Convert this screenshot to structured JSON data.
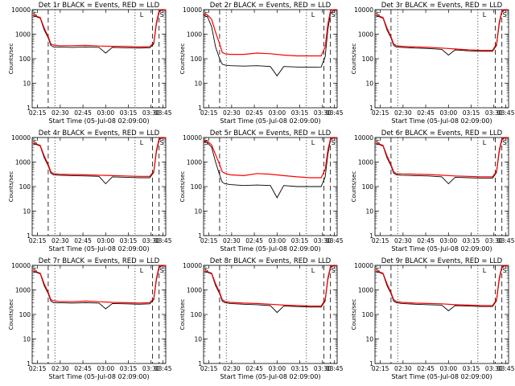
{
  "figure": {
    "xlabel": "Start Time (05-Jul-08 02:09:00)",
    "ylabel": "Counts/sec",
    "x_ticks": [
      "02:15",
      "02:30",
      "02:45",
      "03:00",
      "03:15",
      "03:30",
      "03:45"
    ],
    "y_ticks": [
      "1",
      "10",
      "100",
      "1000",
      "10000"
    ]
  },
  "colors": {
    "events": "#000000",
    "lld": "#ff0000"
  },
  "chart_data": [
    {
      "type": "line",
      "title": "Det 1r BLACK = Events, RED = LLD",
      "xlabel": "Start Time (05-Jul-08 02:09:00)",
      "ylabel": "Counts/sec",
      "y_scale": "log",
      "ylim": [
        1,
        10000
      ],
      "x_range_minutes_after_start": [
        0,
        100
      ],
      "x_ticks": [
        "02:15",
        "02:30",
        "02:45",
        "03:00",
        "03:15",
        "03:30",
        "03:45"
      ],
      "markers": [
        "S",
        "L",
        "S"
      ],
      "series": [
        {
          "name": "Events",
          "x": [
            0,
            3,
            6,
            9,
            12,
            14,
            16,
            20,
            30,
            40,
            50,
            55,
            60,
            70,
            80,
            88,
            91,
            93,
            95,
            97,
            100
          ],
          "y": [
            6000,
            5200,
            4500,
            1500,
            700,
            350,
            300,
            300,
            290,
            300,
            290,
            170,
            290,
            280,
            270,
            280,
            400,
            2500,
            8000,
            9500,
            10000
          ]
        },
        {
          "name": "LLD",
          "x": [
            0,
            3,
            6,
            9,
            12,
            14,
            16,
            20,
            30,
            40,
            50,
            60,
            70,
            80,
            88,
            91,
            93,
            95,
            97,
            100
          ],
          "y": [
            6000,
            5500,
            4800,
            1800,
            800,
            400,
            360,
            340,
            340,
            350,
            330,
            320,
            320,
            300,
            310,
            450,
            3000,
            9000,
            10000,
            10000
          ]
        }
      ]
    },
    {
      "type": "line",
      "title": "Det 2r BLACK = Events, RED = LLD",
      "xlabel": "Start Time (05-Jul-08 02:09:00)",
      "ylabel": "Counts/sec",
      "y_scale": "log",
      "ylim": [
        1,
        10000
      ],
      "x_range_minutes_after_start": [
        0,
        100
      ],
      "x_ticks": [
        "02:15",
        "02:30",
        "02:45",
        "03:00",
        "03:15",
        "03:30",
        "03:45"
      ],
      "markers": [
        "S",
        "L",
        "S"
      ],
      "series": [
        {
          "name": "Events",
          "x": [
            0,
            3,
            6,
            9,
            12,
            14,
            16,
            20,
            30,
            40,
            50,
            55,
            60,
            70,
            80,
            88,
            91,
            93,
            95,
            97,
            100
          ],
          "y": [
            6000,
            5000,
            2000,
            300,
            100,
            60,
            55,
            52,
            50,
            52,
            48,
            20,
            48,
            46,
            45,
            46,
            120,
            1500,
            7000,
            9000,
            10000
          ]
        },
        {
          "name": "LLD",
          "x": [
            0,
            3,
            6,
            9,
            12,
            14,
            16,
            20,
            30,
            40,
            50,
            60,
            70,
            80,
            88,
            91,
            93,
            95,
            97,
            100
          ],
          "y": [
            7000,
            6000,
            4000,
            1200,
            400,
            180,
            160,
            150,
            150,
            170,
            160,
            140,
            130,
            130,
            130,
            300,
            2500,
            9000,
            10000,
            10000
          ]
        }
      ]
    },
    {
      "type": "line",
      "title": "Det 3r BLACK = Events, RED = LLD",
      "xlabel": "Start Time (05-Jul-08 02:09:00)",
      "ylabel": "Counts/sec",
      "y_scale": "log",
      "ylim": [
        1,
        10000
      ],
      "x_range_minutes_after_start": [
        0,
        100
      ],
      "x_ticks": [
        "02:15",
        "02:30",
        "02:45",
        "03:00",
        "03:15",
        "03:30",
        "03:45"
      ],
      "markers": [
        "S",
        "L",
        "S"
      ],
      "series": [
        {
          "name": "Events",
          "x": [
            0,
            3,
            6,
            9,
            12,
            14,
            16,
            20,
            30,
            40,
            50,
            55,
            60,
            70,
            80,
            88,
            91,
            93,
            95,
            97,
            100
          ],
          "y": [
            6000,
            5200,
            4500,
            1500,
            700,
            350,
            300,
            290,
            270,
            260,
            240,
            140,
            230,
            210,
            200,
            200,
            350,
            2500,
            8000,
            9500,
            10000
          ]
        },
        {
          "name": "LLD",
          "x": [
            0,
            3,
            6,
            9,
            12,
            14,
            16,
            20,
            30,
            40,
            50,
            60,
            70,
            80,
            88,
            91,
            93,
            95,
            97,
            100
          ],
          "y": [
            6000,
            5500,
            4800,
            1800,
            800,
            400,
            340,
            320,
            300,
            290,
            270,
            250,
            230,
            220,
            220,
            400,
            3000,
            9000,
            10000,
            10000
          ]
        }
      ]
    },
    {
      "type": "line",
      "title": "Det 4r BLACK = Events, RED = LLD",
      "xlabel": "Start Time (05-Jul-08 02:09:00)",
      "ylabel": "Counts/sec",
      "y_scale": "log",
      "ylim": [
        1,
        10000
      ],
      "x_range_minutes_after_start": [
        0,
        100
      ],
      "x_ticks": [
        "02:15",
        "02:30",
        "02:45",
        "03:00",
        "03:15",
        "03:30",
        "03:45"
      ],
      "markers": [
        "S",
        "L",
        "S"
      ],
      "series": [
        {
          "name": "Events",
          "x": [
            0,
            3,
            6,
            9,
            12,
            14,
            16,
            20,
            30,
            40,
            50,
            55,
            60,
            70,
            80,
            88,
            91,
            93,
            95,
            97,
            100
          ],
          "y": [
            6000,
            5200,
            4500,
            1500,
            700,
            350,
            300,
            290,
            280,
            270,
            260,
            130,
            250,
            240,
            230,
            230,
            380,
            2500,
            8000,
            9500,
            10000
          ]
        },
        {
          "name": "LLD",
          "x": [
            0,
            3,
            6,
            9,
            12,
            14,
            16,
            20,
            30,
            40,
            50,
            60,
            70,
            80,
            88,
            91,
            93,
            95,
            97,
            100
          ],
          "y": [
            6000,
            5500,
            4800,
            1800,
            800,
            400,
            340,
            320,
            310,
            300,
            290,
            280,
            270,
            260,
            260,
            420,
            3000,
            9000,
            10000,
            10000
          ]
        }
      ]
    },
    {
      "type": "line",
      "title": "Det 5r BLACK = Events, RED = LLD",
      "xlabel": "Start Time (05-Jul-08 02:09:00)",
      "ylabel": "Counts/sec",
      "y_scale": "log",
      "ylim": [
        1,
        10000
      ],
      "x_range_minutes_after_start": [
        0,
        100
      ],
      "x_ticks": [
        "02:15",
        "02:30",
        "02:45",
        "03:00",
        "03:15",
        "03:30",
        "03:45"
      ],
      "markers": [
        "S",
        "L",
        "S"
      ],
      "series": [
        {
          "name": "Events",
          "x": [
            0,
            3,
            6,
            9,
            12,
            14,
            16,
            20,
            30,
            40,
            50,
            55,
            60,
            70,
            80,
            88,
            91,
            93,
            95,
            97,
            100
          ],
          "y": [
            7000,
            6000,
            4000,
            1000,
            300,
            150,
            130,
            120,
            110,
            115,
            110,
            35,
            110,
            100,
            100,
            100,
            250,
            2000,
            8000,
            9500,
            10000
          ]
        },
        {
          "name": "LLD",
          "x": [
            0,
            3,
            6,
            9,
            12,
            14,
            16,
            20,
            30,
            40,
            50,
            60,
            70,
            80,
            88,
            91,
            93,
            95,
            97,
            100
          ],
          "y": [
            8000,
            7000,
            5000,
            2000,
            800,
            400,
            350,
            300,
            280,
            340,
            320,
            280,
            250,
            230,
            230,
            500,
            3000,
            9000,
            10000,
            10000
          ]
        }
      ]
    },
    {
      "type": "line",
      "title": "Det 6r BLACK = Events, RED = LLD",
      "xlabel": "Start Time (05-Jul-08 02:09:00)",
      "ylabel": "Counts/sec",
      "y_scale": "log",
      "ylim": [
        1,
        10000
      ],
      "x_range_minutes_after_start": [
        0,
        100
      ],
      "x_ticks": [
        "02:15",
        "02:30",
        "02:45",
        "03:00",
        "03:15",
        "03:30",
        "03:45"
      ],
      "markers": [
        "S",
        "L",
        "S"
      ],
      "series": [
        {
          "name": "Events",
          "x": [
            0,
            3,
            6,
            9,
            12,
            14,
            16,
            20,
            30,
            40,
            50,
            55,
            60,
            70,
            80,
            88,
            91,
            93,
            95,
            97,
            100
          ],
          "y": [
            6000,
            5200,
            4500,
            1500,
            700,
            350,
            300,
            290,
            280,
            270,
            250,
            130,
            240,
            230,
            220,
            220,
            380,
            2500,
            8000,
            9500,
            10000
          ]
        },
        {
          "name": "LLD",
          "x": [
            0,
            3,
            6,
            9,
            12,
            14,
            16,
            20,
            30,
            40,
            50,
            60,
            70,
            80,
            88,
            91,
            93,
            95,
            97,
            100
          ],
          "y": [
            6000,
            5500,
            4800,
            1800,
            800,
            400,
            340,
            330,
            320,
            310,
            290,
            270,
            260,
            250,
            250,
            420,
            3000,
            9000,
            10000,
            10000
          ]
        }
      ]
    },
    {
      "type": "line",
      "title": "Det 7r BLACK = Events, RED = LLD",
      "xlabel": "Start Time (05-Jul-08 02:09:00)",
      "ylabel": "Counts/sec",
      "y_scale": "log",
      "ylim": [
        1,
        10000
      ],
      "x_range_minutes_after_start": [
        0,
        100
      ],
      "x_ticks": [
        "02:15",
        "02:30",
        "02:45",
        "03:00",
        "03:15",
        "03:30",
        "03:45"
      ],
      "markers": [
        "S",
        "L",
        "S"
      ],
      "series": [
        {
          "name": "Events",
          "x": [
            0,
            3,
            6,
            9,
            12,
            14,
            16,
            20,
            30,
            40,
            50,
            55,
            60,
            70,
            80,
            88,
            91,
            93,
            95,
            97,
            100
          ],
          "y": [
            6000,
            5200,
            4500,
            1500,
            700,
            350,
            300,
            300,
            290,
            300,
            290,
            170,
            280,
            270,
            260,
            270,
            400,
            2500,
            8000,
            9500,
            10000
          ]
        },
        {
          "name": "LLD",
          "x": [
            0,
            3,
            6,
            9,
            12,
            14,
            16,
            20,
            30,
            40,
            50,
            60,
            70,
            80,
            88,
            91,
            93,
            95,
            97,
            100
          ],
          "y": [
            6000,
            5500,
            4800,
            1800,
            800,
            400,
            360,
            340,
            330,
            350,
            330,
            310,
            300,
            290,
            300,
            450,
            3000,
            9000,
            10000,
            10000
          ]
        }
      ]
    },
    {
      "type": "line",
      "title": "Det 8r BLACK = Events, RED = LLD",
      "xlabel": "Start Time (05-Jul-08 02:09:00)",
      "ylabel": "Counts/sec",
      "y_scale": "log",
      "ylim": [
        1,
        10000
      ],
      "x_range_minutes_after_start": [
        0,
        100
      ],
      "x_ticks": [
        "02:15",
        "02:30",
        "02:45",
        "03:00",
        "03:15",
        "03:30",
        "03:45"
      ],
      "markers": [
        "S",
        "L",
        "S"
      ],
      "series": [
        {
          "name": "Events",
          "x": [
            0,
            3,
            6,
            9,
            12,
            14,
            16,
            20,
            30,
            40,
            50,
            55,
            60,
            70,
            80,
            88,
            91,
            93,
            95,
            97,
            100
          ],
          "y": [
            6000,
            5200,
            4500,
            1500,
            700,
            350,
            300,
            280,
            260,
            250,
            230,
            120,
            220,
            210,
            200,
            200,
            350,
            2500,
            8000,
            9500,
            10000
          ]
        },
        {
          "name": "LLD",
          "x": [
            0,
            3,
            6,
            9,
            12,
            14,
            16,
            20,
            30,
            40,
            50,
            60,
            70,
            80,
            88,
            91,
            93,
            95,
            97,
            100
          ],
          "y": [
            6000,
            5500,
            4800,
            1800,
            800,
            400,
            340,
            310,
            290,
            280,
            260,
            240,
            230,
            220,
            220,
            400,
            3000,
            9000,
            10000,
            10000
          ]
        }
      ]
    },
    {
      "type": "line",
      "title": "Det 9r BLACK = Events, RED = LLD",
      "xlabel": "Start Time (05-Jul-08 02:09:00)",
      "ylabel": "Counts/sec",
      "y_scale": "log",
      "ylim": [
        1,
        10000
      ],
      "x_range_minutes_after_start": [
        0,
        100
      ],
      "x_ticks": [
        "02:15",
        "02:30",
        "02:45",
        "03:00",
        "03:15",
        "03:30",
        "03:45"
      ],
      "markers": [
        "S",
        "L",
        "S"
      ],
      "series": [
        {
          "name": "Events",
          "x": [
            0,
            3,
            6,
            9,
            12,
            14,
            16,
            20,
            30,
            40,
            50,
            55,
            60,
            70,
            80,
            88,
            91,
            93,
            95,
            97,
            100
          ],
          "y": [
            6000,
            5200,
            4500,
            1500,
            700,
            350,
            300,
            280,
            260,
            250,
            240,
            140,
            230,
            220,
            210,
            210,
            360,
            2500,
            8000,
            9500,
            10000
          ]
        },
        {
          "name": "LLD",
          "x": [
            0,
            3,
            6,
            9,
            12,
            14,
            16,
            20,
            30,
            40,
            50,
            60,
            70,
            80,
            88,
            91,
            93,
            95,
            97,
            100
          ],
          "y": [
            6000,
            5500,
            4800,
            1800,
            800,
            400,
            340,
            310,
            290,
            280,
            270,
            250,
            240,
            230,
            230,
            400,
            3000,
            9000,
            10000,
            10000
          ]
        }
      ]
    }
  ]
}
